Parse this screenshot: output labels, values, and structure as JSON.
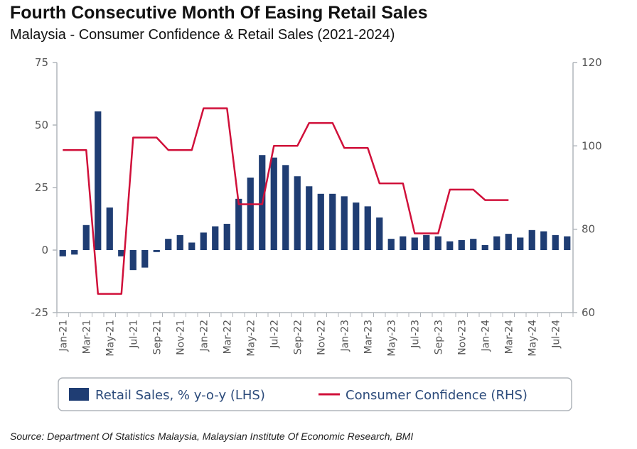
{
  "title": "Fourth Consecutive Month Of Easing Retail Sales",
  "subtitle": "Malaysia - Consumer Confidence & Retail Sales (2021-2024)",
  "source": "Source: Department Of Statistics Malaysia, Malaysian Institute Of Economic Research, BMI",
  "colors": {
    "bars": "#1f3d73",
    "line": "#d0103a",
    "axis": "#b0b5bb"
  },
  "chart_data": {
    "type": "bar+line",
    "months": [
      "Jan-21",
      "Feb-21",
      "Mar-21",
      "Apr-21",
      "May-21",
      "Jun-21",
      "Jul-21",
      "Aug-21",
      "Sep-21",
      "Oct-21",
      "Nov-21",
      "Dec-21",
      "Jan-22",
      "Feb-22",
      "Mar-22",
      "Apr-22",
      "May-22",
      "Jun-22",
      "Jul-22",
      "Aug-22",
      "Sep-22",
      "Oct-22",
      "Nov-22",
      "Dec-22",
      "Jan-23",
      "Feb-23",
      "Mar-23",
      "Apr-23",
      "May-23",
      "Jun-23",
      "Jul-23",
      "Aug-23",
      "Sep-23",
      "Oct-23",
      "Nov-23",
      "Dec-23",
      "Jan-24",
      "Feb-24",
      "Mar-24",
      "Apr-24",
      "May-24",
      "Jun-24",
      "Jul-24",
      "Aug-24"
    ],
    "x_tick_labels": [
      "Jan-21",
      "Mar-21",
      "May-21",
      "Jul-21",
      "Sep-21",
      "Nov-21",
      "Jan-22",
      "Mar-22",
      "May-22",
      "Jul-22",
      "Sep-22",
      "Nov-22",
      "Jan-23",
      "Mar-23",
      "May-23",
      "Jul-23",
      "Sep-23",
      "Nov-23",
      "Jan-24",
      "Mar-24",
      "May-24",
      "Jul-24"
    ],
    "series": [
      {
        "name": "Retail Sales, % y-o-y (LHS)",
        "type": "bar",
        "axis": "left",
        "values": [
          -2.5,
          -1.8,
          10,
          55.5,
          17,
          -2.5,
          -8,
          -7,
          -0.8,
          4.5,
          6,
          3,
          7,
          9.5,
          10.5,
          20.5,
          29,
          38,
          37,
          34,
          29.5,
          25.5,
          22.5,
          22.5,
          21.5,
          19,
          17.5,
          13,
          4.5,
          5.5,
          5,
          6,
          5.5,
          3.5,
          4,
          4.5,
          2,
          5.5,
          6.5,
          5,
          8,
          7.5,
          6,
          5.5
        ]
      },
      {
        "name": "Consumer Confidence (RHS)",
        "type": "line",
        "axis": "right",
        "values": [
          99,
          99,
          99,
          64.5,
          64.5,
          64.5,
          102,
          102,
          102,
          99,
          99,
          99,
          109,
          109,
          109,
          86,
          86,
          86,
          100,
          100,
          100,
          105.5,
          105.5,
          105.5,
          99.5,
          99.5,
          99.5,
          91,
          91,
          91,
          79,
          79,
          79,
          89.5,
          89.5,
          89.5,
          87,
          87,
          87,
          null,
          null,
          null,
          null,
          null
        ]
      }
    ],
    "y_left": {
      "ticks": [
        75,
        50,
        25,
        0,
        -25
      ],
      "ylim": [
        -25,
        75
      ]
    },
    "y_right": {
      "ticks": [
        120,
        100,
        80,
        60
      ],
      "ylim": [
        60,
        120
      ]
    },
    "grid": false,
    "legend": "bottom"
  }
}
